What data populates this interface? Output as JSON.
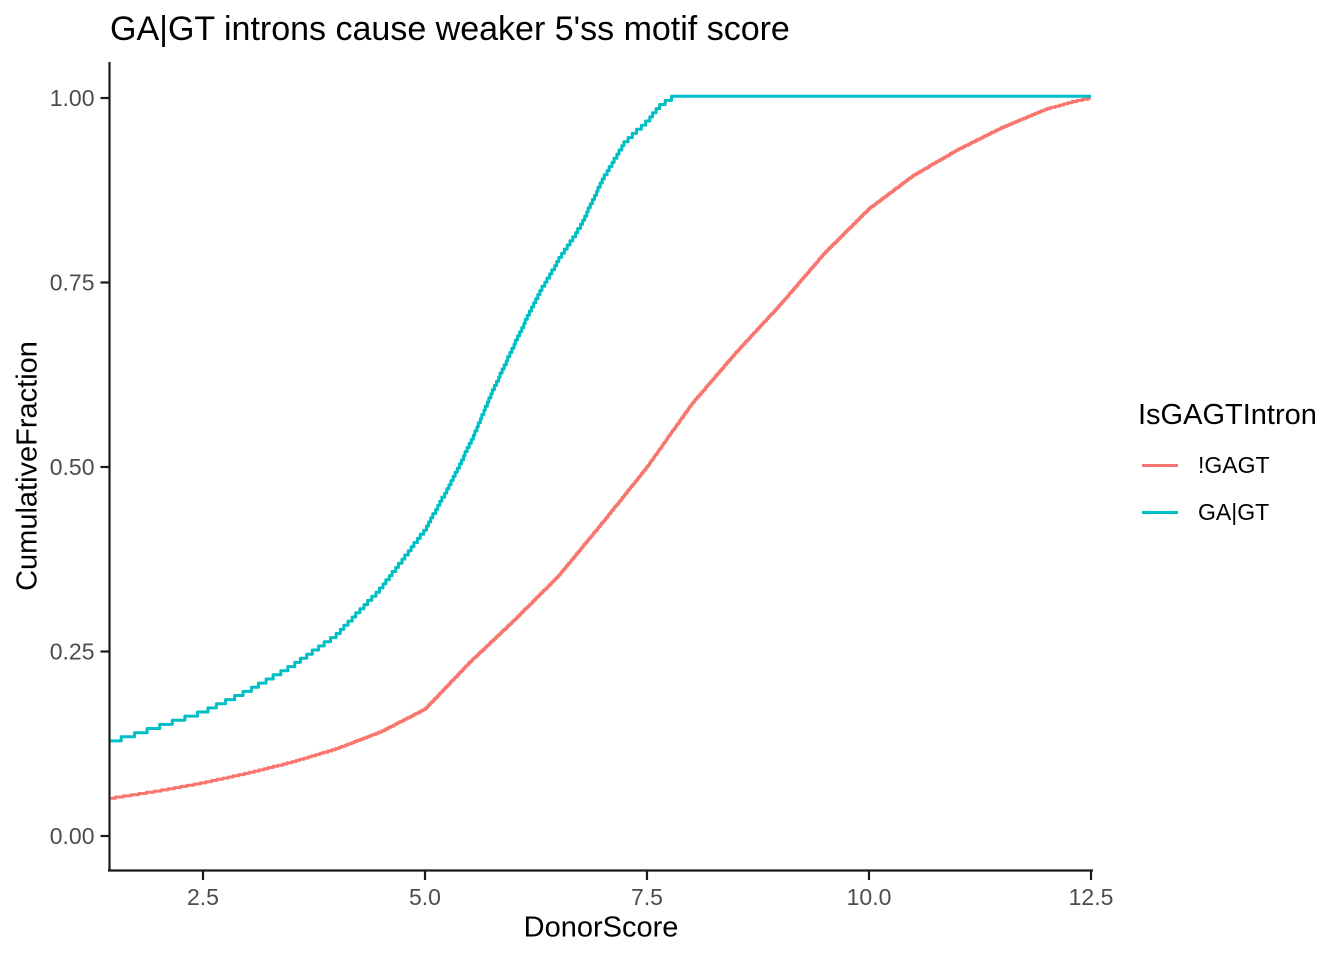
{
  "chart_data": {
    "type": "line",
    "subtype": "ecdf-step",
    "title": "GA|GT introns cause weaker 5'ss motif score",
    "xlabel": "DonorScore",
    "ylabel": "CumulativeFraction",
    "xlim": [
      1.44,
      12.55
    ],
    "ylim": [
      0.0,
      1.0
    ],
    "grid": false,
    "legend_position": "right",
    "x_ticks": [
      {
        "value": 2.5,
        "label": "2.5"
      },
      {
        "value": 5.0,
        "label": "5.0"
      },
      {
        "value": 7.5,
        "label": "7.5"
      },
      {
        "value": 10.0,
        "label": "10.0"
      },
      {
        "value": 12.5,
        "label": "12.5"
      }
    ],
    "y_ticks": [
      {
        "value": 0.0,
        "label": "0.00"
      },
      {
        "value": 0.25,
        "label": "0.25"
      },
      {
        "value": 0.5,
        "label": "0.50"
      },
      {
        "value": 0.75,
        "label": "0.75"
      },
      {
        "value": 1.0,
        "label": "1.00"
      }
    ],
    "series": [
      {
        "name": "!GAGT",
        "color": "#F8766D",
        "step_quantum": 0.0016,
        "points": [
          [
            1.46,
            0.051
          ],
          [
            2.0,
            0.061
          ],
          [
            2.5,
            0.072
          ],
          [
            3.0,
            0.085
          ],
          [
            3.5,
            0.1
          ],
          [
            4.0,
            0.118
          ],
          [
            4.5,
            0.141
          ],
          [
            5.0,
            0.172
          ],
          [
            5.5,
            0.235
          ],
          [
            6.0,
            0.292
          ],
          [
            6.5,
            0.352
          ],
          [
            7.0,
            0.425
          ],
          [
            7.5,
            0.5
          ],
          [
            8.0,
            0.585
          ],
          [
            8.5,
            0.655
          ],
          [
            9.0,
            0.72
          ],
          [
            9.5,
            0.79
          ],
          [
            10.0,
            0.85
          ],
          [
            10.5,
            0.895
          ],
          [
            11.0,
            0.93
          ],
          [
            11.5,
            0.96
          ],
          [
            12.0,
            0.985
          ],
          [
            12.3,
            0.995
          ],
          [
            12.5,
            1.0
          ]
        ]
      },
      {
        "name": "GA|GT",
        "color": "#00BFC4",
        "step_quantum": 0.0056,
        "points": [
          [
            1.46,
            0.127
          ],
          [
            2.0,
            0.148
          ],
          [
            2.5,
            0.168
          ],
          [
            3.0,
            0.196
          ],
          [
            3.5,
            0.23
          ],
          [
            4.0,
            0.272
          ],
          [
            4.5,
            0.335
          ],
          [
            5.0,
            0.415
          ],
          [
            5.25,
            0.47
          ],
          [
            5.5,
            0.53
          ],
          [
            5.75,
            0.6
          ],
          [
            6.0,
            0.665
          ],
          [
            6.25,
            0.728
          ],
          [
            6.5,
            0.78
          ],
          [
            6.75,
            0.826
          ],
          [
            7.0,
            0.89
          ],
          [
            7.25,
            0.94
          ],
          [
            7.5,
            0.968
          ],
          [
            7.65,
            0.99
          ],
          [
            7.78,
            1.0
          ],
          [
            12.5,
            1.0
          ]
        ]
      }
    ]
  },
  "legend": {
    "title": "IsGAGTIntron",
    "items": [
      {
        "label": "!GAGT",
        "color": "#F8766D"
      },
      {
        "label": "GA|GT",
        "color": "#00BFC4"
      }
    ]
  },
  "style": {
    "axis_line_color": "#1a1a1a",
    "tick_label_color": "#4d4d4d",
    "background": "#ffffff",
    "curve_stroke_width": 3
  }
}
